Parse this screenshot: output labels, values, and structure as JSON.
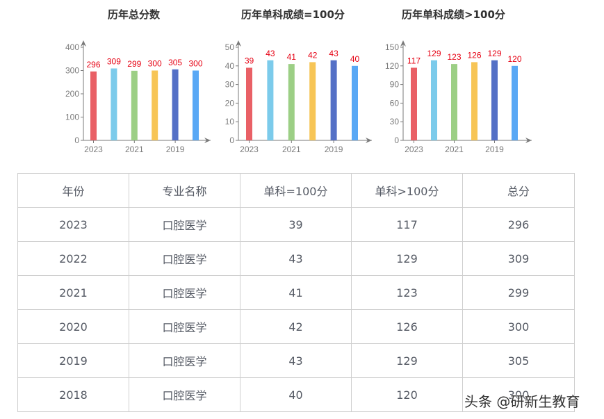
{
  "colors": {
    "bars": [
      "#e96066",
      "#7ccbeb",
      "#9ccf85",
      "#f7c556",
      "#5470c6",
      "#59a8f5"
    ],
    "value_label": "#e60012",
    "axis": "#7a7a7a"
  },
  "chart_data": [
    {
      "type": "bar",
      "title": "历年总分数",
      "categories": [
        "2023",
        "2022",
        "2021",
        "2020",
        "2019",
        "2018"
      ],
      "visible_xticks": [
        "2023",
        "2021",
        "2019"
      ],
      "values": [
        296,
        309,
        299,
        300,
        305,
        300
      ],
      "yticks": [
        0,
        100,
        200,
        300,
        400
      ],
      "ylim": [
        0,
        400
      ],
      "xlabel": "",
      "ylabel": "",
      "grid": false,
      "legend": "none"
    },
    {
      "type": "bar",
      "title": "历年单科成绩=100分",
      "categories": [
        "2023",
        "2022",
        "2021",
        "2020",
        "2019",
        "2018"
      ],
      "visible_xticks": [
        "2023",
        "2021",
        "2019"
      ],
      "values": [
        39,
        43,
        41,
        42,
        43,
        40
      ],
      "yticks": [
        0,
        10,
        20,
        30,
        40,
        50
      ],
      "ylim": [
        0,
        50
      ],
      "xlabel": "",
      "ylabel": "",
      "grid": false,
      "legend": "none"
    },
    {
      "type": "bar",
      "title": "历年单科成绩>100分",
      "categories": [
        "2023",
        "2022",
        "2021",
        "2020",
        "2019",
        "2018"
      ],
      "visible_xticks": [
        "2023",
        "2021",
        "2019"
      ],
      "values": [
        117,
        129,
        123,
        126,
        129,
        120
      ],
      "yticks": [
        0,
        30,
        60,
        90,
        120,
        150
      ],
      "ylim": [
        0,
        150
      ],
      "xlabel": "",
      "ylabel": "",
      "grid": false,
      "legend": "none"
    }
  ],
  "table": {
    "headers": [
      "年份",
      "专业名称",
      "单科=100分",
      "单科>100分",
      "总分"
    ],
    "rows": [
      [
        "2023",
        "口腔医学",
        "39",
        "117",
        "296"
      ],
      [
        "2022",
        "口腔医学",
        "43",
        "129",
        "309"
      ],
      [
        "2021",
        "口腔医学",
        "41",
        "123",
        "299"
      ],
      [
        "2020",
        "口腔医学",
        "42",
        "126",
        "300"
      ],
      [
        "2019",
        "口腔医学",
        "43",
        "129",
        "305"
      ],
      [
        "2018",
        "口腔医学",
        "40",
        "120",
        "300"
      ]
    ]
  },
  "watermark": "头条 @研新生教育"
}
